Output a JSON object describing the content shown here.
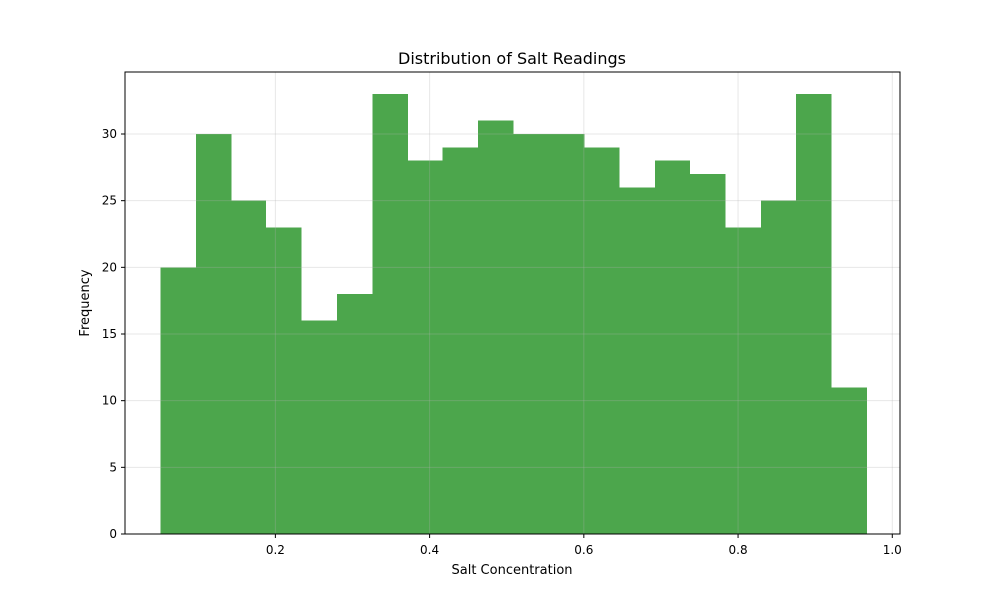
{
  "chart_data": {
    "type": "bar",
    "title": "Distribution of Salt Readings",
    "xlabel": "Salt Concentration",
    "ylabel": "Frequency",
    "bar_color": "#4ca64c",
    "grid": true,
    "xlim": [
      0.005,
      1.01
    ],
    "ylim": [
      0,
      34.65
    ],
    "x_ticks": [
      {
        "value": 0.2,
        "label": "0.2"
      },
      {
        "value": 0.4,
        "label": "0.4"
      },
      {
        "value": 0.6,
        "label": "0.6"
      },
      {
        "value": 0.8,
        "label": "0.8"
      },
      {
        "value": 1.0,
        "label": "1.0"
      }
    ],
    "y_ticks": [
      {
        "value": 0,
        "label": "0"
      },
      {
        "value": 5,
        "label": "5"
      },
      {
        "value": 10,
        "label": "10"
      },
      {
        "value": 15,
        "label": "15"
      },
      {
        "value": 20,
        "label": "20"
      },
      {
        "value": 25,
        "label": "25"
      },
      {
        "value": 30,
        "label": "30"
      }
    ],
    "bin_edges": [
      0.051,
      0.097,
      0.143,
      0.188,
      0.234,
      0.28,
      0.326,
      0.372,
      0.417,
      0.463,
      0.509,
      0.555,
      0.601,
      0.646,
      0.692,
      0.738,
      0.784,
      0.83,
      0.875,
      0.921,
      0.967
    ],
    "values": [
      20,
      30,
      25,
      23,
      16,
      18,
      33,
      28,
      29,
      31,
      30,
      30,
      29,
      26,
      28,
      27,
      23,
      25,
      33,
      11
    ]
  }
}
